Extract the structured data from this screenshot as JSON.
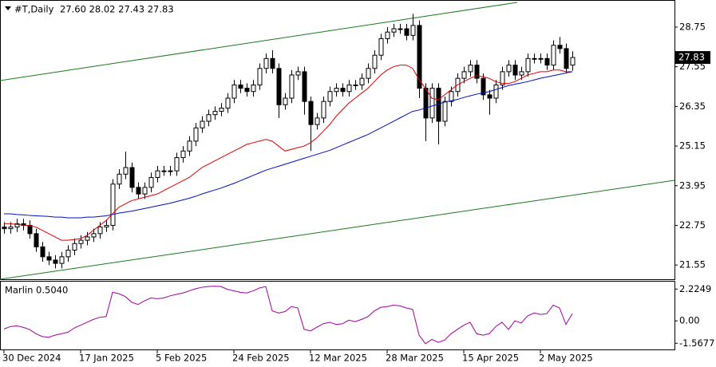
{
  "chart_data": [
    {
      "type": "candlestick",
      "title": "#T,Daily",
      "subtitle": "27.60 28.02 27.43 27.83",
      "categories": [
        "30 Dec 2024",
        null,
        null,
        null,
        null,
        null,
        null,
        null,
        null,
        null,
        null,
        null,
        "17 Jan 2025",
        null,
        null,
        null,
        null,
        null,
        null,
        null,
        null,
        null,
        null,
        null,
        "5 Feb 2025",
        null,
        null,
        null,
        null,
        null,
        null,
        null,
        null,
        null,
        null,
        null,
        "24 Feb 2025",
        null,
        null,
        null,
        null,
        null,
        null,
        null,
        null,
        null,
        null,
        null,
        "12 Mar 2025",
        null,
        null,
        null,
        null,
        null,
        null,
        null,
        null,
        null,
        null,
        null,
        "28 Mar 2025",
        null,
        null,
        null,
        null,
        null,
        null,
        null,
        null,
        null,
        null,
        null,
        "15 Apr 2025",
        null,
        null,
        null,
        null,
        null,
        null,
        null,
        null,
        null,
        null,
        null,
        "2 May 2025",
        null,
        null,
        null,
        null,
        null
      ],
      "open": [
        22.7,
        22.65,
        22.7,
        22.8,
        22.75,
        22.5,
        22.1,
        21.8,
        21.7,
        21.6,
        21.8,
        22.0,
        22.2,
        22.3,
        22.4,
        22.5,
        22.7,
        22.75,
        24.0,
        24.3,
        24.5,
        23.9,
        23.7,
        23.9,
        24.2,
        24.4,
        24.4,
        24.4,
        24.8,
        25.0,
        25.3,
        25.7,
        25.9,
        26.1,
        26.2,
        26.3,
        26.6,
        27.0,
        26.9,
        26.8,
        27.0,
        27.5,
        27.8,
        27.5,
        26.4,
        26.6,
        27.3,
        27.4,
        26.5,
        25.8,
        26.0,
        26.5,
        26.8,
        26.9,
        26.8,
        27.0,
        27.0,
        27.2,
        27.5,
        27.9,
        28.4,
        28.6,
        28.7,
        28.7,
        28.5,
        28.8,
        26.9,
        26.0,
        26.9,
        25.9,
        26.5,
        26.8,
        27.2,
        27.4,
        27.6,
        27.2,
        26.7,
        26.6,
        27.0,
        27.4,
        27.6,
        27.3,
        27.4,
        27.8,
        27.8,
        27.8,
        27.6,
        28.2,
        28.1,
        27.6
      ],
      "high": [
        22.85,
        22.85,
        22.95,
        22.95,
        22.9,
        22.65,
        22.25,
        21.95,
        21.85,
        21.95,
        22.15,
        22.35,
        22.45,
        22.55,
        22.65,
        22.85,
        22.9,
        24.15,
        24.45,
        24.98,
        24.65,
        24.05,
        24.05,
        24.35,
        24.55,
        24.55,
        24.55,
        24.95,
        25.15,
        25.45,
        25.85,
        26.05,
        26.25,
        26.35,
        26.45,
        26.75,
        27.15,
        27.15,
        27.05,
        27.15,
        27.65,
        27.95,
        28.05,
        27.65,
        26.75,
        27.45,
        27.55,
        27.55,
        26.65,
        26.15,
        26.65,
        26.95,
        27.05,
        27.05,
        27.15,
        27.15,
        27.35,
        27.65,
        28.05,
        28.55,
        28.75,
        28.85,
        28.85,
        28.85,
        29.15,
        28.95,
        27.05,
        27.05,
        27.05,
        26.65,
        26.95,
        27.35,
        27.55,
        27.75,
        27.75,
        27.35,
        26.85,
        27.15,
        27.55,
        27.75,
        27.75,
        27.55,
        27.95,
        27.95,
        27.95,
        27.95,
        28.35,
        28.45,
        28.25,
        28.02
      ],
      "low": [
        22.5,
        22.5,
        22.55,
        22.6,
        22.35,
        21.95,
        21.65,
        21.55,
        21.45,
        21.45,
        21.65,
        21.85,
        22.05,
        22.15,
        22.25,
        22.35,
        22.55,
        22.6,
        23.85,
        24.15,
        23.75,
        23.55,
        23.55,
        23.75,
        24.05,
        24.25,
        24.25,
        24.25,
        24.65,
        24.85,
        25.15,
        25.55,
        25.75,
        25.95,
        26.05,
        26.15,
        26.45,
        26.75,
        26.65,
        26.65,
        26.85,
        27.35,
        27.35,
        26.0,
        26.25,
        26.45,
        27.15,
        26.1,
        25.0,
        25.65,
        25.85,
        26.35,
        26.65,
        26.65,
        26.65,
        26.85,
        26.85,
        27.05,
        27.35,
        27.75,
        28.25,
        28.45,
        28.55,
        28.35,
        28.35,
        26.6,
        25.3,
        25.85,
        25.2,
        25.75,
        26.35,
        26.65,
        27.05,
        27.25,
        27.05,
        26.55,
        26.1,
        26.45,
        26.85,
        27.25,
        27.15,
        27.15,
        27.25,
        27.65,
        27.65,
        27.45,
        27.45,
        27.95,
        27.35,
        27.43
      ],
      "close": [
        22.65,
        22.7,
        22.8,
        22.75,
        22.5,
        22.1,
        21.8,
        21.7,
        21.6,
        21.8,
        22.0,
        22.2,
        22.3,
        22.4,
        22.5,
        22.7,
        22.75,
        24.0,
        24.3,
        24.5,
        23.9,
        23.7,
        23.9,
        24.2,
        24.4,
        24.4,
        24.4,
        24.8,
        25.0,
        25.3,
        25.7,
        25.9,
        26.1,
        26.2,
        26.3,
        26.6,
        27.0,
        26.9,
        26.8,
        27.0,
        27.5,
        27.8,
        27.5,
        26.4,
        26.6,
        27.3,
        27.4,
        26.5,
        25.8,
        26.0,
        26.5,
        26.8,
        26.9,
        26.8,
        27.0,
        27.0,
        27.2,
        27.5,
        27.9,
        28.4,
        28.6,
        28.7,
        28.7,
        28.5,
        28.8,
        26.9,
        26.0,
        26.9,
        25.9,
        26.5,
        26.8,
        27.2,
        27.4,
        27.6,
        27.2,
        26.7,
        26.6,
        27.0,
        27.4,
        27.6,
        27.3,
        27.4,
        27.8,
        27.8,
        27.8,
        27.6,
        28.2,
        28.1,
        27.5,
        27.83
      ],
      "lines": [
        {
          "color": "#e00000",
          "values": [
            22.8,
            22.8,
            22.78,
            22.76,
            22.74,
            22.7,
            22.6,
            22.5,
            22.4,
            22.3,
            22.3,
            22.32,
            22.35,
            22.45,
            22.6,
            22.75,
            22.9,
            23.1,
            23.3,
            23.4,
            23.5,
            23.55,
            23.6,
            23.65,
            23.7,
            23.8,
            23.9,
            24.0,
            24.1,
            24.2,
            24.35,
            24.5,
            24.6,
            24.7,
            24.8,
            24.9,
            25.0,
            25.1,
            25.2,
            25.25,
            25.3,
            25.35,
            25.3,
            25.15,
            25.0,
            25.05,
            25.1,
            25.15,
            25.25,
            25.4,
            25.6,
            25.8,
            26.05,
            26.25,
            26.45,
            26.6,
            26.75,
            26.9,
            27.1,
            27.3,
            27.45,
            27.55,
            27.6,
            27.6,
            27.5,
            27.16,
            26.9,
            26.6,
            26.55,
            26.7,
            26.85,
            27.0,
            27.1,
            27.2,
            27.28,
            27.25,
            27.2,
            27.1,
            27.05,
            27.04,
            27.1,
            27.2,
            27.3,
            27.35,
            27.4,
            27.4,
            27.45,
            27.45,
            27.4,
            27.4
          ]
        },
        {
          "color": "#0010c0",
          "values": [
            23.1,
            23.1,
            23.08,
            23.07,
            23.05,
            23.04,
            23.03,
            23.02,
            23.0,
            23.0,
            22.98,
            22.98,
            22.98,
            23.0,
            23.0,
            23.02,
            23.04,
            23.08,
            23.12,
            23.15,
            23.18,
            23.22,
            23.26,
            23.3,
            23.34,
            23.38,
            23.42,
            23.47,
            23.52,
            23.57,
            23.63,
            23.7,
            23.76,
            23.82,
            23.88,
            23.95,
            24.02,
            24.1,
            24.18,
            24.26,
            24.34,
            24.42,
            24.48,
            24.54,
            24.6,
            24.66,
            24.72,
            24.78,
            24.84,
            24.9,
            24.96,
            25.02,
            25.1,
            25.18,
            25.26,
            25.34,
            25.42,
            25.5,
            25.6,
            25.7,
            25.8,
            25.9,
            26.0,
            26.1,
            26.2,
            26.24,
            26.3,
            26.36,
            26.42,
            26.48,
            26.52,
            26.56,
            26.62,
            26.67,
            26.72,
            26.76,
            26.8,
            26.86,
            26.92,
            26.98,
            27.02,
            27.06,
            27.1,
            27.15,
            27.2,
            27.24,
            27.28,
            27.32,
            27.36,
            27.4
          ]
        }
      ],
      "ylim": [
        21.12,
        29.57
      ],
      "yticks": [
        21.55,
        22.75,
        23.95,
        25.15,
        26.35,
        27.55,
        28.75
      ]
    },
    {
      "type": "line",
      "title": "Marlin 0.5040",
      "color": "#a000a0",
      "values": [
        -0.57,
        -0.4,
        -0.35,
        -0.45,
        -0.6,
        -0.9,
        -1.1,
        -1.15,
        -1.0,
        -0.9,
        -0.8,
        -0.5,
        -0.3,
        -0.1,
        0.1,
        0.25,
        0.3,
        2.0,
        1.9,
        1.7,
        1.3,
        1.15,
        1.4,
        1.6,
        1.55,
        1.6,
        1.75,
        1.85,
        1.95,
        2.1,
        2.25,
        2.35,
        2.4,
        2.42,
        2.4,
        2.2,
        2.1,
        2.0,
        1.95,
        2.1,
        2.3,
        2.4,
        0.7,
        0.55,
        0.65,
        1.0,
        0.9,
        -0.6,
        -0.7,
        -0.45,
        -0.2,
        -0.1,
        -0.25,
        -0.2,
        0.05,
        -0.05,
        0.1,
        0.3,
        0.7,
        0.95,
        1.0,
        1.1,
        1.05,
        0.9,
        0.8,
        -1.0,
        -1.6,
        -1.3,
        -1.5,
        -1.35,
        -0.9,
        -0.6,
        -0.3,
        -0.1,
        -0.9,
        -1.0,
        -0.9,
        -0.4,
        -0.1,
        -0.6,
        0.0,
        -0.15,
        0.35,
        0.55,
        0.45,
        0.5,
        1.1,
        0.9,
        -0.25,
        0.504
      ],
      "ylim": [
        -2.0,
        2.8
      ],
      "yticks": [
        -1.5677,
        {
          "value": 0,
          "label": "0.00"
        },
        2.2249
      ]
    }
  ]
}
